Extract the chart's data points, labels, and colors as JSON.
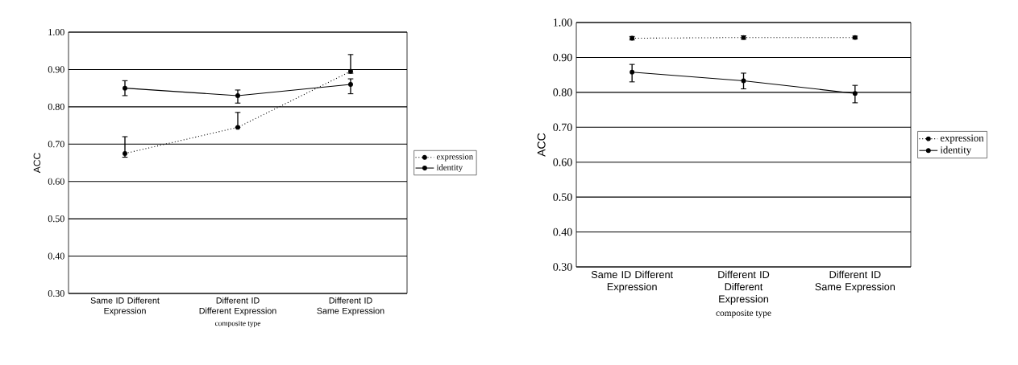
{
  "chart_data": [
    {
      "type": "line",
      "categories": [
        "Same ID Different Expression",
        "Different ID Different Expression",
        "Different ID Same Expression"
      ],
      "xlabel": "composite type",
      "ylabel": "ACC",
      "ylim": [
        0.3,
        1.0
      ],
      "yticks": [
        {
          "value": 0.3,
          "label": "0.30"
        },
        {
          "value": 0.4,
          "label": "0.40"
        },
        {
          "value": 0.5,
          "label": "0.50"
        },
        {
          "value": 0.6,
          "label": "0.60"
        },
        {
          "value": 0.7,
          "label": "0.70"
        },
        {
          "value": 0.8,
          "label": "0.80"
        },
        {
          "value": 0.9,
          "label": "0.90"
        },
        {
          "value": 1.0,
          "label": "1.00"
        }
      ],
      "grid": "y",
      "legend": "right",
      "marker": "circle",
      "series": [
        {
          "name": "expression",
          "color": "#000000",
          "line_style": "dotted",
          "values": [
            0.675,
            0.745,
            0.895
          ],
          "errors": [
            [
              0.665,
              0.72
            ],
            [
              0.745,
              0.785
            ],
            [
              0.89,
              0.94
            ]
          ]
        },
        {
          "name": "identity",
          "color": "#000000",
          "line_style": "solid",
          "values": [
            0.85,
            0.83,
            0.86
          ],
          "errors": [
            [
              0.83,
              0.87
            ],
            [
              0.81,
              0.845
            ],
            [
              0.835,
              0.875
            ]
          ]
        }
      ]
    },
    {
      "type": "line",
      "categories": [
        "Same ID Different Expression",
        "Different ID Different Expression",
        "Different ID Same Expression"
      ],
      "xlabel": "composite type",
      "ylabel": "ACC",
      "ylim": [
        0.3,
        1.0
      ],
      "yticks": [
        {
          "value": 0.3,
          "label": "0.30"
        },
        {
          "value": 0.4,
          "label": "0.40"
        },
        {
          "value": 0.5,
          "label": "0.50"
        },
        {
          "value": 0.6,
          "label": "0.60"
        },
        {
          "value": 0.7,
          "label": "0.70"
        },
        {
          "value": 0.8,
          "label": "0.80"
        },
        {
          "value": 0.9,
          "label": "0.90"
        },
        {
          "value": 1.0,
          "label": "1.00"
        }
      ],
      "grid": "y",
      "legend": "right",
      "marker": "circle",
      "series": [
        {
          "name": "expression",
          "color": "#000000",
          "line_style": "dotted",
          "values": [
            0.955,
            0.957,
            0.957
          ],
          "errors": [
            [
              0.95,
              0.96
            ],
            [
              0.952,
              0.962
            ],
            [
              0.953,
              0.961
            ]
          ]
        },
        {
          "name": "identity",
          "color": "#000000",
          "line_style": "solid",
          "values": [
            0.858,
            0.833,
            0.797
          ],
          "errors": [
            [
              0.83,
              0.88
            ],
            [
              0.81,
              0.855
            ],
            [
              0.77,
              0.82
            ]
          ]
        }
      ]
    }
  ]
}
